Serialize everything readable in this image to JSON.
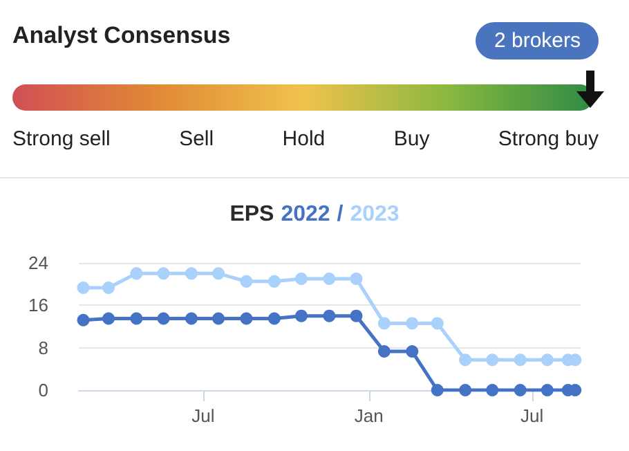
{
  "chart_data": [
    {
      "type": "other",
      "title": "Analyst Consensus",
      "annotations": [
        "2 brokers"
      ],
      "categories": [
        "Strong sell",
        "Sell",
        "Hold",
        "Buy",
        "Strong buy"
      ],
      "colors": [
        "#d14f55",
        "#e08a35",
        "#f0c24c",
        "#8ab83f",
        "#2e8b45"
      ]
    },
    {
      "type": "line",
      "title": "EPS",
      "annotations": [
        "/"
      ],
      "x": [
        "2022-02-18",
        "2022-03-18",
        "2022-04-18",
        "2022-05-18",
        "2022-06-18",
        "2022-07-18",
        "2022-08-18",
        "2022-09-18",
        "2022-10-18",
        "2022-11-18",
        "2022-12-18",
        "2023-01-18",
        "2023-02-18",
        "2023-03-18",
        "2023-04-18",
        "2023-05-18",
        "2023-06-18",
        "2023-07-18",
        "2023-08-10",
        "2023-08-18"
      ],
      "series": [
        {
          "name": "2022",
          "color": "#4472c4",
          "values": [
            13.2,
            13.5,
            13.5,
            13.5,
            13.5,
            13.5,
            13.5,
            13.5,
            14,
            14,
            14,
            7.3,
            7.3,
            0,
            0,
            0,
            0,
            0,
            0,
            0
          ]
        },
        {
          "name": "2023",
          "color": "#a9d1fb",
          "values": [
            19.3,
            19.3,
            22,
            22,
            22,
            22,
            20.5,
            20.5,
            21,
            21,
            21,
            12.6,
            12.6,
            12.6,
            5.7,
            5.7,
            5.7,
            5.7,
            5.7,
            5.7
          ]
        }
      ],
      "xlim": [
        "2022-02-13",
        "2023-08-24"
      ],
      "xticks": [
        {
          "value": "2022-07-01",
          "label": "Jul"
        },
        {
          "value": "2023-01-01",
          "label": "Jan"
        },
        {
          "value": "2023-07-01",
          "label": "Jul"
        }
      ],
      "ylim": [
        0,
        24
      ],
      "yticks": [
        0,
        8,
        16,
        24
      ],
      "grid": "y",
      "legend": "top",
      "marker": "circle",
      "line_style": "solid"
    }
  ]
}
